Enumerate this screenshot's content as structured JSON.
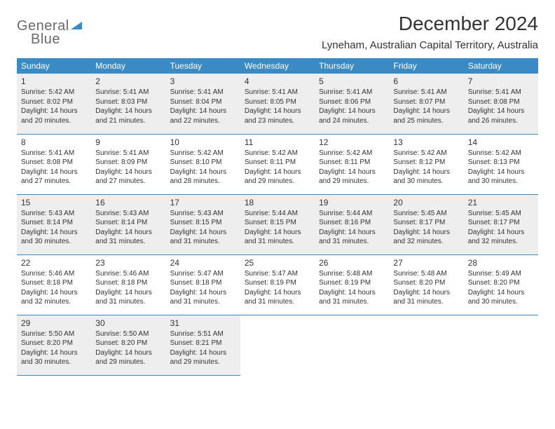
{
  "logo": {
    "line1": "General",
    "line2": "Blue"
  },
  "title": "December 2024",
  "location": "Lyneham, Australian Capital Territory, Australia",
  "colors": {
    "header_bg": "#3b8ac4",
    "header_fg": "#ffffff",
    "text": "#333333",
    "row_alt": "#eeeeee"
  },
  "weekdays": [
    "Sunday",
    "Monday",
    "Tuesday",
    "Wednesday",
    "Thursday",
    "Friday",
    "Saturday"
  ],
  "weeks": [
    [
      {
        "n": "1",
        "sr": "5:42 AM",
        "ss": "8:02 PM",
        "dl": "14 hours and 20 minutes."
      },
      {
        "n": "2",
        "sr": "5:41 AM",
        "ss": "8:03 PM",
        "dl": "14 hours and 21 minutes."
      },
      {
        "n": "3",
        "sr": "5:41 AM",
        "ss": "8:04 PM",
        "dl": "14 hours and 22 minutes."
      },
      {
        "n": "4",
        "sr": "5:41 AM",
        "ss": "8:05 PM",
        "dl": "14 hours and 23 minutes."
      },
      {
        "n": "5",
        "sr": "5:41 AM",
        "ss": "8:06 PM",
        "dl": "14 hours and 24 minutes."
      },
      {
        "n": "6",
        "sr": "5:41 AM",
        "ss": "8:07 PM",
        "dl": "14 hours and 25 minutes."
      },
      {
        "n": "7",
        "sr": "5:41 AM",
        "ss": "8:08 PM",
        "dl": "14 hours and 26 minutes."
      }
    ],
    [
      {
        "n": "8",
        "sr": "5:41 AM",
        "ss": "8:08 PM",
        "dl": "14 hours and 27 minutes."
      },
      {
        "n": "9",
        "sr": "5:41 AM",
        "ss": "8:09 PM",
        "dl": "14 hours and 27 minutes."
      },
      {
        "n": "10",
        "sr": "5:42 AM",
        "ss": "8:10 PM",
        "dl": "14 hours and 28 minutes."
      },
      {
        "n": "11",
        "sr": "5:42 AM",
        "ss": "8:11 PM",
        "dl": "14 hours and 29 minutes."
      },
      {
        "n": "12",
        "sr": "5:42 AM",
        "ss": "8:11 PM",
        "dl": "14 hours and 29 minutes."
      },
      {
        "n": "13",
        "sr": "5:42 AM",
        "ss": "8:12 PM",
        "dl": "14 hours and 30 minutes."
      },
      {
        "n": "14",
        "sr": "5:42 AM",
        "ss": "8:13 PM",
        "dl": "14 hours and 30 minutes."
      }
    ],
    [
      {
        "n": "15",
        "sr": "5:43 AM",
        "ss": "8:14 PM",
        "dl": "14 hours and 30 minutes."
      },
      {
        "n": "16",
        "sr": "5:43 AM",
        "ss": "8:14 PM",
        "dl": "14 hours and 31 minutes."
      },
      {
        "n": "17",
        "sr": "5:43 AM",
        "ss": "8:15 PM",
        "dl": "14 hours and 31 minutes."
      },
      {
        "n": "18",
        "sr": "5:44 AM",
        "ss": "8:15 PM",
        "dl": "14 hours and 31 minutes."
      },
      {
        "n": "19",
        "sr": "5:44 AM",
        "ss": "8:16 PM",
        "dl": "14 hours and 31 minutes."
      },
      {
        "n": "20",
        "sr": "5:45 AM",
        "ss": "8:17 PM",
        "dl": "14 hours and 32 minutes."
      },
      {
        "n": "21",
        "sr": "5:45 AM",
        "ss": "8:17 PM",
        "dl": "14 hours and 32 minutes."
      }
    ],
    [
      {
        "n": "22",
        "sr": "5:46 AM",
        "ss": "8:18 PM",
        "dl": "14 hours and 32 minutes."
      },
      {
        "n": "23",
        "sr": "5:46 AM",
        "ss": "8:18 PM",
        "dl": "14 hours and 31 minutes."
      },
      {
        "n": "24",
        "sr": "5:47 AM",
        "ss": "8:18 PM",
        "dl": "14 hours and 31 minutes."
      },
      {
        "n": "25",
        "sr": "5:47 AM",
        "ss": "8:19 PM",
        "dl": "14 hours and 31 minutes."
      },
      {
        "n": "26",
        "sr": "5:48 AM",
        "ss": "8:19 PM",
        "dl": "14 hours and 31 minutes."
      },
      {
        "n": "27",
        "sr": "5:48 AM",
        "ss": "8:20 PM",
        "dl": "14 hours and 31 minutes."
      },
      {
        "n": "28",
        "sr": "5:49 AM",
        "ss": "8:20 PM",
        "dl": "14 hours and 30 minutes."
      }
    ],
    [
      {
        "n": "29",
        "sr": "5:50 AM",
        "ss": "8:20 PM",
        "dl": "14 hours and 30 minutes."
      },
      {
        "n": "30",
        "sr": "5:50 AM",
        "ss": "8:20 PM",
        "dl": "14 hours and 29 minutes."
      },
      {
        "n": "31",
        "sr": "5:51 AM",
        "ss": "8:21 PM",
        "dl": "14 hours and 29 minutes."
      },
      null,
      null,
      null,
      null
    ]
  ],
  "labels": {
    "sunrise": "Sunrise:",
    "sunset": "Sunset:",
    "daylight": "Daylight:"
  }
}
